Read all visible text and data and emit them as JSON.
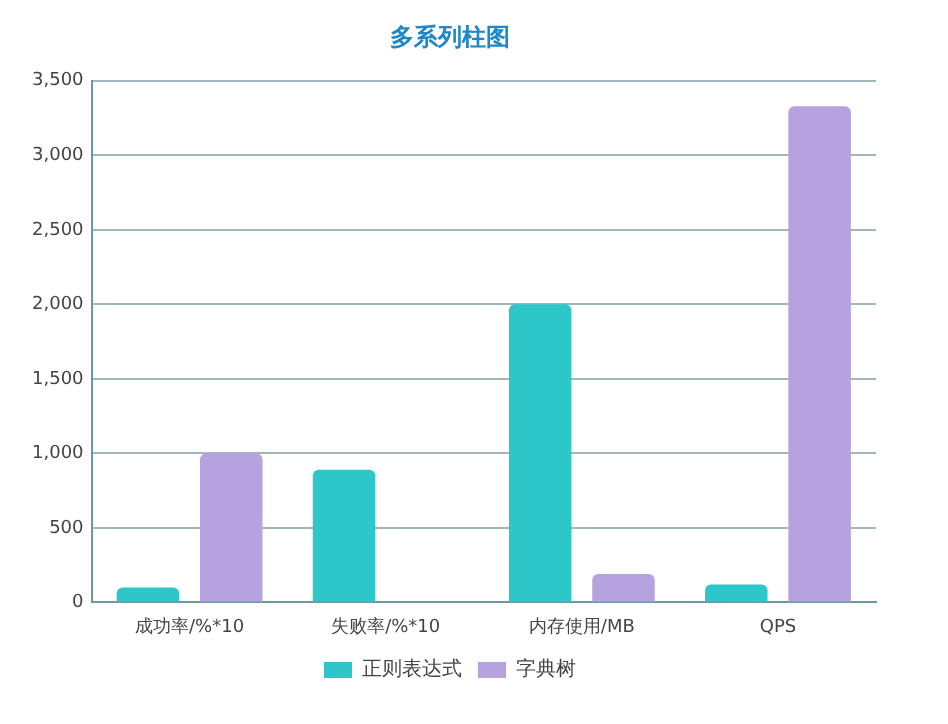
{
  "chart_data": {
    "type": "bar",
    "title": "多系列柱图",
    "categories": [
      "成功率/%*10",
      "失败率/%*10",
      "内存使用/MB",
      "QPS"
    ],
    "series": [
      {
        "name": "正则表达式",
        "color": "#2ec7c9",
        "values": [
          100,
          890,
          2000,
          120
        ]
      },
      {
        "name": "字典树",
        "color": "#b6a2de",
        "values": [
          1000,
          0,
          190,
          3330
        ]
      }
    ],
    "ylim": [
      0,
      3500
    ],
    "yticks": [
      0,
      500,
      {
        "value": 1000,
        "label": "1,000"
      },
      {
        "value": 1500,
        "label": "1,500"
      },
      {
        "value": 2000,
        "label": "2,000"
      },
      {
        "value": 2500,
        "label": "2,500"
      },
      {
        "value": 3000,
        "label": "3,000"
      },
      {
        "value": 3500,
        "label": "3,500"
      }
    ],
    "grid": "y",
    "legend": "bottom"
  }
}
